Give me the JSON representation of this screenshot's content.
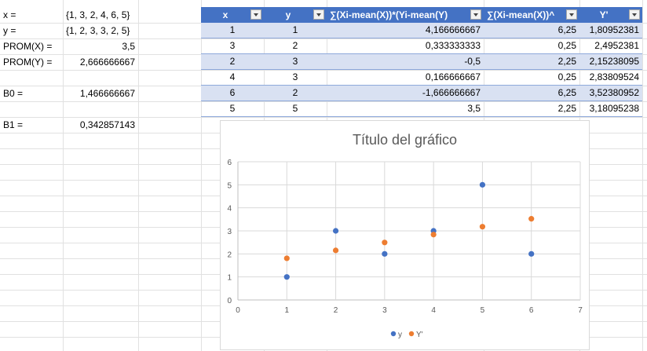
{
  "sheet": {
    "labels": [
      {
        "id": "x-label",
        "text": "x ="
      },
      {
        "id": "y-label",
        "text": "y ="
      },
      {
        "id": "prom-x-label",
        "text": "PROM(X) ="
      },
      {
        "id": "prom-y-label",
        "text": "PROM(Y) ="
      },
      {
        "id": "b0-label",
        "text": "B0 ="
      },
      {
        "id": "b1-label",
        "text": "B1 ="
      }
    ],
    "x_set": "{1, 3, 2, 4, 6, 5}",
    "y_set": "{1, 2, 3, 3, 2, 5}",
    "prom_x": "3,5",
    "prom_y": "2,666666667",
    "b0": "1,466666667",
    "b1": "0,342857143"
  },
  "table": {
    "headers": [
      "x",
      "y",
      "∑(Xi-mean(X))*(Yi-mean(Y)",
      "∑(Xi-mean(X))^",
      "Y'"
    ],
    "rows": [
      [
        "1",
        "1",
        "4,166666667",
        "6,25",
        "1,80952381"
      ],
      [
        "3",
        "2",
        "0,333333333",
        "0,25",
        "2,4952381"
      ],
      [
        "2",
        "3",
        "-0,5",
        "2,25",
        "2,15238095"
      ],
      [
        "4",
        "3",
        "0,166666667",
        "0,25",
        "2,83809524"
      ],
      [
        "6",
        "2",
        "-1,666666667",
        "6,25",
        "3,52380952"
      ],
      [
        "5",
        "5",
        "3,5",
        "2,25",
        "3,18095238"
      ]
    ]
  },
  "chart_data": {
    "type": "scatter",
    "title": "Título del gráfico",
    "xlim": [
      0,
      7
    ],
    "ylim": [
      0,
      6
    ],
    "x_ticks": [
      "0",
      "1",
      "2",
      "3",
      "4",
      "5",
      "6",
      "7"
    ],
    "y_ticks": [
      "0",
      "1",
      "2",
      "3",
      "4",
      "5",
      "6"
    ],
    "grid": true,
    "legend_position": "bottom",
    "series": [
      {
        "name": "y",
        "color": "#4472c4",
        "points": [
          [
            1,
            1
          ],
          [
            3,
            2
          ],
          [
            2,
            3
          ],
          [
            4,
            3
          ],
          [
            6,
            2
          ],
          [
            5,
            5
          ]
        ]
      },
      {
        "name": "Y'",
        "color": "#ed7d31",
        "points": [
          [
            1,
            1.80952381
          ],
          [
            3,
            2.4952381
          ],
          [
            2,
            2.15238095
          ],
          [
            4,
            2.83809524
          ],
          [
            6,
            3.52380952
          ],
          [
            5,
            3.18095238
          ]
        ]
      }
    ]
  }
}
